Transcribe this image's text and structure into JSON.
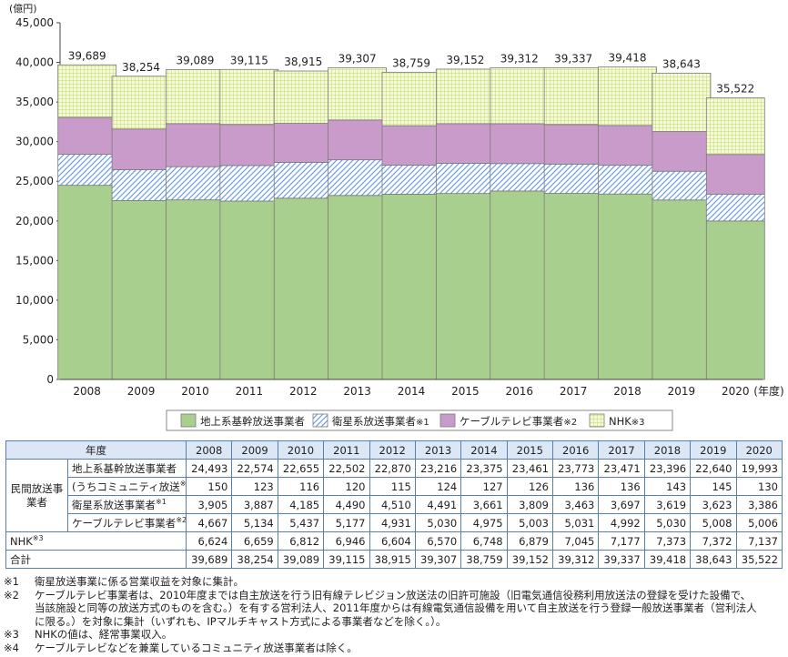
{
  "chart_data": {
    "type": "bar",
    "stacked": true,
    "unit_label": "(億円)",
    "x_unit_label": "(年度)",
    "categories": [
      "2008",
      "2009",
      "2010",
      "2011",
      "2012",
      "2013",
      "2014",
      "2015",
      "2016",
      "2017",
      "2018",
      "2019",
      "2020"
    ],
    "ylim": [
      0,
      45000
    ],
    "yticks": [
      "0",
      "5,000",
      "10,000",
      "15,000",
      "20,000",
      "25,000",
      "30,000",
      "35,000",
      "40,000",
      "45,000"
    ],
    "series": [
      {
        "name": "地上系基幹放送事業者",
        "color": "#a9cf8f",
        "pattern": "solid",
        "values": [
          24493,
          22574,
          22655,
          22502,
          22870,
          23216,
          23375,
          23461,
          23773,
          23471,
          23396,
          22640,
          19993
        ]
      },
      {
        "name": "衛星系放送事業者",
        "note": "※1",
        "color": "#8fb3e0",
        "pattern": "diagonal",
        "values": [
          3905,
          3887,
          4185,
          4490,
          4510,
          4491,
          3661,
          3809,
          3463,
          3697,
          3619,
          3623,
          3386
        ]
      },
      {
        "name": "ケーブルテレビ事業者",
        "note": "※2",
        "color": "#c89bca",
        "pattern": "solid",
        "values": [
          4667,
          5134,
          5437,
          5177,
          4931,
          5030,
          4975,
          5003,
          5031,
          4992,
          5030,
          5008,
          5006
        ]
      },
      {
        "name": "NHK",
        "note": "※3",
        "color": "#e3f0a8",
        "pattern": "grid",
        "values": [
          6624,
          6659,
          6812,
          6946,
          6604,
          6570,
          6748,
          6879,
          7045,
          7177,
          7373,
          7372,
          7137
        ]
      }
    ],
    "totals": [
      "39,689",
      "38,254",
      "39,089",
      "39,115",
      "38,915",
      "39,307",
      "38,759",
      "39,152",
      "39,312",
      "39,337",
      "39,418",
      "38,643",
      "35,522"
    ]
  },
  "table": {
    "header_label": "年度",
    "years": [
      "2008",
      "2009",
      "2010",
      "2011",
      "2012",
      "2013",
      "2014",
      "2015",
      "2016",
      "2017",
      "2018",
      "2019",
      "2020"
    ],
    "group_label": "民間放送事業者",
    "rows": [
      {
        "label": "地上系基幹放送事業者",
        "sup": "",
        "values": [
          "24,493",
          "22,574",
          "22,655",
          "22,502",
          "22,870",
          "23,216",
          "23,375",
          "23,461",
          "23,773",
          "23,471",
          "23,396",
          "22,640",
          "19,993"
        ]
      },
      {
        "label": "(うちコミュニティ放送",
        "sup": "※4",
        "suffix": ")",
        "values": [
          "150",
          "123",
          "116",
          "120",
          "115",
          "124",
          "127",
          "126",
          "136",
          "136",
          "143",
          "145",
          "130"
        ]
      },
      {
        "label": "衛星系放送事業者",
        "sup": "※1",
        "values": [
          "3,905",
          "3,887",
          "4,185",
          "4,490",
          "4,510",
          "4,491",
          "3,661",
          "3,809",
          "3,463",
          "3,697",
          "3,619",
          "3,623",
          "3,386"
        ]
      },
      {
        "label": "ケーブルテレビ事業者",
        "sup": "※2",
        "values": [
          "4,667",
          "5,134",
          "5,437",
          "5,177",
          "4,931",
          "5,030",
          "4,975",
          "5,003",
          "5,031",
          "4,992",
          "5,030",
          "5,008",
          "5,006"
        ]
      }
    ],
    "nhk": {
      "label": "NHK",
      "sup": "※3",
      "values": [
        "6,624",
        "6,659",
        "6,812",
        "6,946",
        "6,604",
        "6,570",
        "6,748",
        "6,879",
        "7,045",
        "7,177",
        "7,373",
        "7,372",
        "7,137"
      ]
    },
    "total": {
      "label": "合計",
      "values": [
        "39,689",
        "38,254",
        "39,089",
        "39,115",
        "38,915",
        "39,307",
        "38,759",
        "39,152",
        "39,312",
        "39,337",
        "39,418",
        "38,643",
        "35,522"
      ]
    }
  },
  "notes": [
    {
      "mark": "※1",
      "text": "衛星放送事業に係る営業収益を対象に集計。"
    },
    {
      "mark": "※2",
      "text": "ケーブルテレビ事業者は、2010年度までは自主放送を行う旧有線テレビジョン放送法の旧許可施設（旧電気通信役務利用放送法の登録を受けた設備で、\n当該施設と同等の放送方式のものを含む。）を有する営利法人、2011年度からは有線電気通信設備を用いて自主放送を行う登録一般放送事業者（営利法人\nに限る。）を対象に集計（いずれも、IPマルチキャスト方式による事業者などを除く。）。"
    },
    {
      "mark": "※3",
      "text": "NHKの値は、経常事業収入。"
    },
    {
      "mark": "※4",
      "text": "ケーブルテレビなどを兼業しているコミュニティ放送事業者は除く。"
    }
  ]
}
